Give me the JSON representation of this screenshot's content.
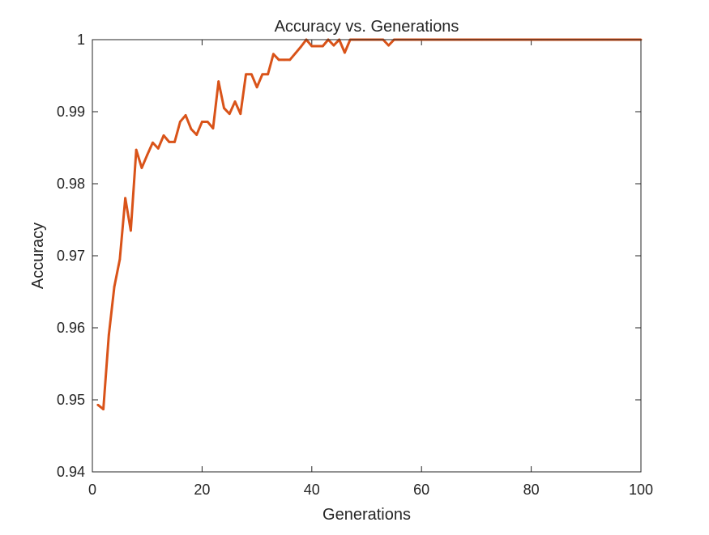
{
  "chart_data": {
    "type": "line",
    "title": "Accuracy vs. Generations",
    "xlabel": "Generations",
    "ylabel": "Accuracy",
    "xlim": [
      0,
      100
    ],
    "ylim": [
      0.94,
      1.0
    ],
    "x_ticks": [
      0,
      20,
      40,
      60,
      80,
      100
    ],
    "x_tick_labels": [
      "0",
      "20",
      "40",
      "60",
      "80",
      "100"
    ],
    "y_ticks": [
      0.94,
      0.95,
      0.96,
      0.97,
      0.98,
      0.99,
      1.0
    ],
    "y_tick_labels": [
      "0.94",
      "0.95",
      "0.96",
      "0.97",
      "0.98",
      "0.99",
      "1"
    ],
    "grid": false,
    "box": true,
    "series": [
      {
        "color": "#D95319",
        "x": [
          1,
          2,
          3,
          4,
          5,
          6,
          7,
          8,
          9,
          10,
          11,
          12,
          13,
          14,
          15,
          16,
          17,
          18,
          19,
          20,
          21,
          22,
          23,
          24,
          25,
          26,
          27,
          28,
          29,
          30,
          31,
          32,
          33,
          34,
          35,
          36,
          37,
          38,
          39,
          40,
          41,
          42,
          43,
          44,
          45,
          46,
          47,
          48,
          49,
          50,
          51,
          52,
          53,
          54,
          55,
          56,
          57,
          58,
          59,
          60,
          61,
          62,
          63,
          64,
          65,
          66,
          67,
          68,
          69,
          70,
          71,
          72,
          73,
          74,
          75,
          76,
          77,
          78,
          79,
          80,
          81,
          82,
          83,
          84,
          85,
          86,
          87,
          88,
          89,
          90,
          91,
          92,
          93,
          94,
          95,
          96,
          97,
          98,
          99,
          100
        ],
        "y": [
          0.9493,
          0.9487,
          0.959,
          0.9657,
          0.9695,
          0.978,
          0.9735,
          0.9847,
          0.9822,
          0.984,
          0.9857,
          0.9849,
          0.9867,
          0.9858,
          0.9858,
          0.9886,
          0.9895,
          0.9876,
          0.9868,
          0.9886,
          0.9886,
          0.9877,
          0.9942,
          0.9905,
          0.9897,
          0.9914,
          0.9897,
          0.9952,
          0.9952,
          0.9934,
          0.9952,
          0.9952,
          0.998,
          0.9972,
          0.9972,
          0.9972,
          0.9981,
          0.999,
          1.0,
          0.9991,
          0.9991,
          0.9991,
          1.0,
          0.9992,
          1.0,
          0.9982,
          1.0,
          1.0,
          1.0,
          1.0,
          1.0,
          1.0,
          1.0,
          0.9992,
          1.0,
          1.0,
          1.0,
          1.0,
          1.0,
          1.0,
          1.0,
          1.0,
          1.0,
          1.0,
          1.0,
          1.0,
          1.0,
          1.0,
          1.0,
          1.0,
          1.0,
          1.0,
          1.0,
          1.0,
          1.0,
          1.0,
          1.0,
          1.0,
          1.0,
          1.0,
          1.0,
          1.0,
          1.0,
          1.0,
          1.0,
          1.0,
          1.0,
          1.0,
          1.0,
          1.0,
          1.0,
          1.0,
          1.0,
          1.0,
          1.0,
          1.0,
          1.0,
          1.0,
          1.0,
          1.0
        ]
      }
    ]
  }
}
